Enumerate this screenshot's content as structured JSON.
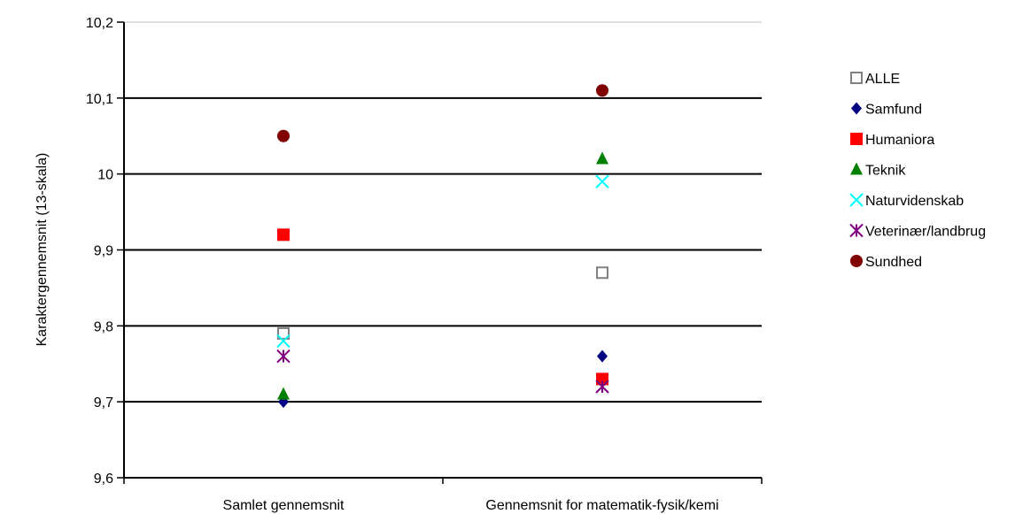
{
  "chart_data": {
    "type": "scatter",
    "title": "",
    "xlabel": "",
    "ylabel": "Karaktergennemsnit (13-skala)",
    "categories": [
      "Samlet gennemsnit",
      "Gennemsnit for matematik-fysik/kemi"
    ],
    "ylim": [
      9.6,
      10.2
    ],
    "yticks": [
      "9,6",
      "9,7",
      "9,8",
      "9,9",
      "10",
      "10,1",
      "10,2"
    ],
    "ytick_values": [
      9.6,
      9.7,
      9.8,
      9.9,
      10.0,
      10.1,
      10.2
    ],
    "grid": "horizontal major gridlines",
    "legend_position": "right",
    "series": [
      {
        "name": "ALLE",
        "marker": "square-open",
        "color": "#808080",
        "values": [
          9.79,
          9.87
        ]
      },
      {
        "name": "Samfund",
        "marker": "diamond",
        "color": "#000080",
        "values": [
          9.7,
          9.76
        ]
      },
      {
        "name": "Humaniora",
        "marker": "square",
        "color": "#ff0000",
        "values": [
          9.92,
          9.73
        ]
      },
      {
        "name": "Teknik",
        "marker": "triangle",
        "color": "#008000",
        "values": [
          9.71,
          10.02
        ]
      },
      {
        "name": "Naturvidenskab",
        "marker": "x",
        "color": "#00ffff",
        "values": [
          9.78,
          9.99
        ]
      },
      {
        "name": "Veterinær/landbrug",
        "marker": "asterisk",
        "color": "#800080",
        "values": [
          9.76,
          9.72
        ]
      },
      {
        "name": "Sundhed",
        "marker": "circle",
        "color": "#800000",
        "values": [
          10.05,
          10.11
        ]
      }
    ]
  }
}
